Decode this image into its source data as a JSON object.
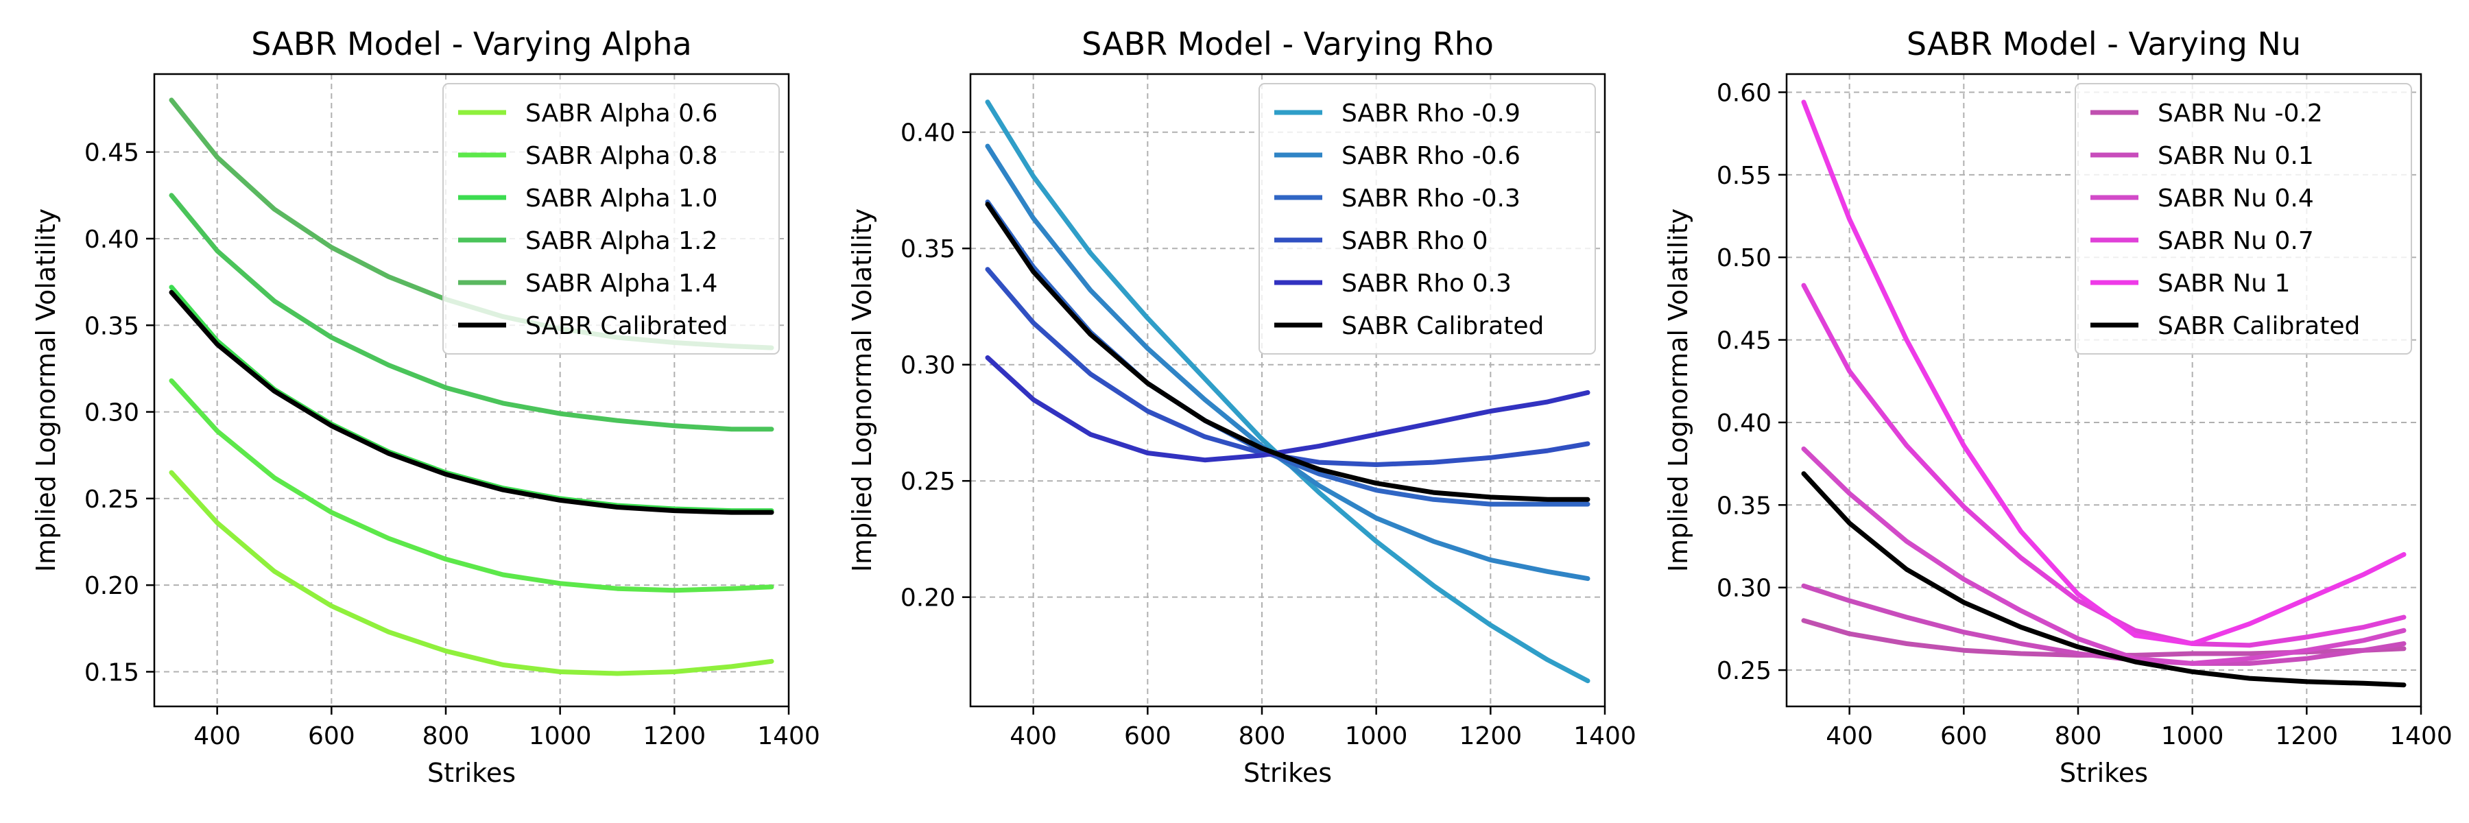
{
  "chart_data": [
    {
      "type": "line",
      "title": "SABR Model - Varying Alpha",
      "xlabel": "Strikes",
      "ylabel": "Implied Lognormal Volatility",
      "xlim": [
        290,
        1400
      ],
      "ylim": [
        0.13,
        0.495
      ],
      "xticks": [
        400,
        600,
        800,
        1000,
        1200,
        1400
      ],
      "yticks": [
        0.15,
        0.2,
        0.25,
        0.3,
        0.35,
        0.4,
        0.45
      ],
      "ytick_labels": [
        "0.15",
        "0.20",
        "0.25",
        "0.30",
        "0.35",
        "0.40",
        "0.45"
      ],
      "grid": true,
      "legend_position": "top-right",
      "series": [
        {
          "name": "SABR Alpha 0.6",
          "color": "#8ff03c",
          "points": [
            [
              320,
              0.265
            ],
            [
              400,
              0.236
            ],
            [
              500,
              0.208
            ],
            [
              600,
              0.188
            ],
            [
              700,
              0.173
            ],
            [
              800,
              0.162
            ],
            [
              900,
              0.154
            ],
            [
              1000,
              0.15
            ],
            [
              1100,
              0.149
            ],
            [
              1200,
              0.15
            ],
            [
              1300,
              0.153
            ],
            [
              1370,
              0.156
            ]
          ]
        },
        {
          "name": "SABR Alpha 0.8",
          "color": "#5ce84a",
          "points": [
            [
              320,
              0.318
            ],
            [
              400,
              0.289
            ],
            [
              500,
              0.262
            ],
            [
              600,
              0.242
            ],
            [
              700,
              0.227
            ],
            [
              800,
              0.215
            ],
            [
              900,
              0.206
            ],
            [
              1000,
              0.201
            ],
            [
              1100,
              0.198
            ],
            [
              1200,
              0.197
            ],
            [
              1300,
              0.198
            ],
            [
              1370,
              0.199
            ]
          ]
        },
        {
          "name": "SABR Alpha 1.0",
          "color": "#3cdc50",
          "points": [
            [
              320,
              0.372
            ],
            [
              400,
              0.341
            ],
            [
              500,
              0.313
            ],
            [
              600,
              0.293
            ],
            [
              700,
              0.277
            ],
            [
              800,
              0.265
            ],
            [
              900,
              0.256
            ],
            [
              1000,
              0.25
            ],
            [
              1100,
              0.246
            ],
            [
              1200,
              0.244
            ],
            [
              1300,
              0.243
            ],
            [
              1370,
              0.243
            ]
          ]
        },
        {
          "name": "SABR Alpha 1.2",
          "color": "#4ac45a",
          "points": [
            [
              320,
              0.425
            ],
            [
              400,
              0.393
            ],
            [
              500,
              0.364
            ],
            [
              600,
              0.343
            ],
            [
              700,
              0.327
            ],
            [
              800,
              0.314
            ],
            [
              900,
              0.305
            ],
            [
              1000,
              0.299
            ],
            [
              1100,
              0.295
            ],
            [
              1200,
              0.292
            ],
            [
              1300,
              0.29
            ],
            [
              1370,
              0.29
            ]
          ]
        },
        {
          "name": "SABR Alpha 1.4",
          "color": "#5ab860",
          "points": [
            [
              320,
              0.48
            ],
            [
              400,
              0.447
            ],
            [
              500,
              0.417
            ],
            [
              600,
              0.395
            ],
            [
              700,
              0.378
            ],
            [
              800,
              0.365
            ],
            [
              900,
              0.355
            ],
            [
              1000,
              0.348
            ],
            [
              1100,
              0.343
            ],
            [
              1200,
              0.34
            ],
            [
              1300,
              0.338
            ],
            [
              1370,
              0.337
            ]
          ]
        },
        {
          "name": "SABR Calibrated",
          "color": "#000000",
          "points": [
            [
              320,
              0.369
            ],
            [
              400,
              0.339
            ],
            [
              500,
              0.312
            ],
            [
              600,
              0.292
            ],
            [
              700,
              0.276
            ],
            [
              800,
              0.264
            ],
            [
              900,
              0.255
            ],
            [
              1000,
              0.249
            ],
            [
              1100,
              0.245
            ],
            [
              1200,
              0.243
            ],
            [
              1300,
              0.242
            ],
            [
              1370,
              0.242
            ]
          ]
        }
      ]
    },
    {
      "type": "line",
      "title": "SABR Model - Varying Rho",
      "xlabel": "Strikes",
      "ylabel": "Implied Lognormal Volatility",
      "xlim": [
        290,
        1400
      ],
      "ylim": [
        0.153,
        0.425
      ],
      "xticks": [
        400,
        600,
        800,
        1000,
        1200,
        1400
      ],
      "yticks": [
        0.2,
        0.25,
        0.3,
        0.35,
        0.4
      ],
      "ytick_labels": [
        "0.20",
        "0.25",
        "0.30",
        "0.35",
        "0.40"
      ],
      "grid": true,
      "legend_position": "top-right",
      "series": [
        {
          "name": "SABR Rho -0.9",
          "color": "#2f9ec8",
          "points": [
            [
              320,
              0.413
            ],
            [
              400,
              0.381
            ],
            [
              500,
              0.348
            ],
            [
              600,
              0.32
            ],
            [
              700,
              0.294
            ],
            [
              800,
              0.268
            ],
            [
              900,
              0.245
            ],
            [
              1000,
              0.224
            ],
            [
              1100,
              0.205
            ],
            [
              1200,
              0.188
            ],
            [
              1300,
              0.173
            ],
            [
              1370,
              0.164
            ]
          ]
        },
        {
          "name": "SABR Rho -0.6",
          "color": "#2f84c6",
          "points": [
            [
              320,
              0.394
            ],
            [
              400,
              0.363
            ],
            [
              500,
              0.332
            ],
            [
              600,
              0.307
            ],
            [
              700,
              0.285
            ],
            [
              800,
              0.265
            ],
            [
              900,
              0.248
            ],
            [
              1000,
              0.234
            ],
            [
              1100,
              0.224
            ],
            [
              1200,
              0.216
            ],
            [
              1300,
              0.211
            ],
            [
              1370,
              0.208
            ]
          ]
        },
        {
          "name": "SABR Rho -0.3",
          "color": "#3066c4",
          "points": [
            [
              320,
              0.37
            ],
            [
              400,
              0.342
            ],
            [
              500,
              0.314
            ],
            [
              600,
              0.292
            ],
            [
              700,
              0.276
            ],
            [
              800,
              0.263
            ],
            [
              900,
              0.253
            ],
            [
              1000,
              0.246
            ],
            [
              1100,
              0.242
            ],
            [
              1200,
              0.24
            ],
            [
              1300,
              0.24
            ],
            [
              1370,
              0.24
            ]
          ]
        },
        {
          "name": "SABR Rho 0",
          "color": "#3050c2",
          "points": [
            [
              320,
              0.341
            ],
            [
              400,
              0.318
            ],
            [
              500,
              0.296
            ],
            [
              600,
              0.28
            ],
            [
              700,
              0.269
            ],
            [
              800,
              0.262
            ],
            [
              900,
              0.258
            ],
            [
              1000,
              0.257
            ],
            [
              1100,
              0.258
            ],
            [
              1200,
              0.26
            ],
            [
              1300,
              0.263
            ],
            [
              1370,
              0.266
            ]
          ]
        },
        {
          "name": "SABR Rho 0.3",
          "color": "#3232c0",
          "points": [
            [
              320,
              0.303
            ],
            [
              400,
              0.285
            ],
            [
              500,
              0.27
            ],
            [
              600,
              0.262
            ],
            [
              700,
              0.259
            ],
            [
              800,
              0.261
            ],
            [
              900,
              0.265
            ],
            [
              1000,
              0.27
            ],
            [
              1100,
              0.275
            ],
            [
              1200,
              0.28
            ],
            [
              1300,
              0.284
            ],
            [
              1370,
              0.288
            ]
          ]
        },
        {
          "name": "SABR Calibrated",
          "color": "#000000",
          "points": [
            [
              320,
              0.369
            ],
            [
              400,
              0.34
            ],
            [
              500,
              0.313
            ],
            [
              600,
              0.292
            ],
            [
              700,
              0.276
            ],
            [
              800,
              0.264
            ],
            [
              900,
              0.255
            ],
            [
              1000,
              0.249
            ],
            [
              1100,
              0.245
            ],
            [
              1200,
              0.243
            ],
            [
              1300,
              0.242
            ],
            [
              1370,
              0.242
            ]
          ]
        }
      ]
    },
    {
      "type": "line",
      "title": "SABR Model - Varying Nu",
      "xlabel": "Strikes",
      "ylabel": "Implied Lognormal Volatility",
      "xlim": [
        290,
        1400
      ],
      "ylim": [
        0.228,
        0.611
      ],
      "xticks": [
        400,
        600,
        800,
        1000,
        1200,
        1400
      ],
      "yticks": [
        0.25,
        0.3,
        0.35,
        0.4,
        0.45,
        0.5,
        0.55,
        0.6
      ],
      "ytick_labels": [
        "0.25",
        "0.30",
        "0.35",
        "0.40",
        "0.45",
        "0.50",
        "0.55",
        "0.60"
      ],
      "grid": true,
      "legend_position": "top-right",
      "series": [
        {
          "name": "SABR Nu -0.2",
          "color": "#c050b0",
          "points": [
            [
              320,
              0.28
            ],
            [
              400,
              0.272
            ],
            [
              500,
              0.266
            ],
            [
              600,
              0.262
            ],
            [
              700,
              0.26
            ],
            [
              800,
              0.259
            ],
            [
              900,
              0.259
            ],
            [
              1000,
              0.26
            ],
            [
              1100,
              0.26
            ],
            [
              1200,
              0.261
            ],
            [
              1300,
              0.262
            ],
            [
              1370,
              0.263
            ]
          ]
        },
        {
          "name": "SABR Nu 0.1",
          "color": "#c84cbc",
          "points": [
            [
              320,
              0.301
            ],
            [
              400,
              0.292
            ],
            [
              500,
              0.282
            ],
            [
              600,
              0.273
            ],
            [
              700,
              0.266
            ],
            [
              800,
              0.26
            ],
            [
              900,
              0.256
            ],
            [
              1000,
              0.254
            ],
            [
              1100,
              0.254
            ],
            [
              1200,
              0.257
            ],
            [
              1300,
              0.262
            ],
            [
              1370,
              0.266
            ]
          ]
        },
        {
          "name": "SABR Nu 0.4",
          "color": "#d24ac8",
          "points": [
            [
              320,
              0.384
            ],
            [
              400,
              0.357
            ],
            [
              500,
              0.328
            ],
            [
              600,
              0.305
            ],
            [
              700,
              0.286
            ],
            [
              800,
              0.269
            ],
            [
              900,
              0.257
            ],
            [
              1000,
              0.254
            ],
            [
              1100,
              0.257
            ],
            [
              1200,
              0.262
            ],
            [
              1300,
              0.268
            ],
            [
              1370,
              0.274
            ]
          ]
        },
        {
          "name": "SABR Nu 0.7",
          "color": "#e040d8",
          "points": [
            [
              320,
              0.483
            ],
            [
              400,
              0.431
            ],
            [
              500,
              0.386
            ],
            [
              600,
              0.349
            ],
            [
              700,
              0.318
            ],
            [
              800,
              0.292
            ],
            [
              900,
              0.274
            ],
            [
              1000,
              0.266
            ],
            [
              1100,
              0.265
            ],
            [
              1200,
              0.27
            ],
            [
              1300,
              0.276
            ],
            [
              1370,
              0.282
            ]
          ]
        },
        {
          "name": "SABR Nu 1",
          "color": "#ee3ae8",
          "points": [
            [
              320,
              0.594
            ],
            [
              400,
              0.523
            ],
            [
              500,
              0.45
            ],
            [
              600,
              0.386
            ],
            [
              700,
              0.334
            ],
            [
              800,
              0.296
            ],
            [
              900,
              0.271
            ],
            [
              1000,
              0.266
            ],
            [
              1100,
              0.278
            ],
            [
              1200,
              0.293
            ],
            [
              1300,
              0.308
            ],
            [
              1370,
              0.32
            ]
          ]
        },
        {
          "name": "SABR Calibrated",
          "color": "#000000",
          "points": [
            [
              320,
              0.369
            ],
            [
              400,
              0.339
            ],
            [
              500,
              0.311
            ],
            [
              600,
              0.291
            ],
            [
              700,
              0.276
            ],
            [
              800,
              0.264
            ],
            [
              900,
              0.255
            ],
            [
              1000,
              0.249
            ],
            [
              1100,
              0.245
            ],
            [
              1200,
              0.243
            ],
            [
              1300,
              0.242
            ],
            [
              1370,
              0.241
            ]
          ]
        }
      ]
    }
  ]
}
